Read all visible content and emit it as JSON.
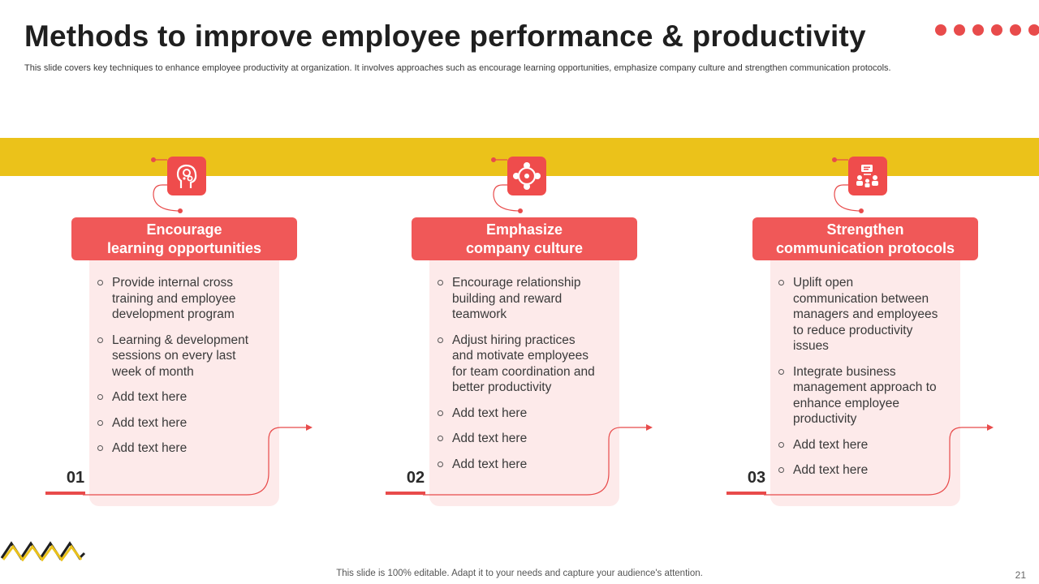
{
  "slide": {
    "title": "Methods to improve employee performance & productivity",
    "subtitle": "This slide covers key techniques to enhance employee productivity at organization. It involves approaches such as encourage learning opportunities, emphasize company culture and strengthen communication protocols.",
    "footer": "This slide is 100% editable. Adapt it to your needs and capture your audience's attention.",
    "page_number": "21"
  },
  "colors": {
    "accent_red": "#ef4c4c",
    "accent_yellow": "#ebc21a",
    "card_fill": "#fdeaea"
  },
  "cards": [
    {
      "icon": "head-gears-icon",
      "title_line1": "Encourage",
      "title_line2": "learning opportunities",
      "items": [
        "Provide internal cross training and employee development program",
        "Learning & development sessions on every last week of month",
        "Add text here",
        "Add text here",
        "Add text here"
      ],
      "number": "01"
    },
    {
      "icon": "team-circle-icon",
      "title_line1": "Emphasize",
      "title_line2": "company culture",
      "items": [
        "Encourage relationship building and reward teamwork",
        "Adjust hiring practices and motivate employees for team coordination and better productivity",
        "Add text here",
        "Add text here",
        "Add text here"
      ],
      "number": "02"
    },
    {
      "icon": "communication-network-icon",
      "title_line1": "Strengthen",
      "title_line2": "communication protocols",
      "items": [
        "Uplift open communication between managers and employees to reduce productivity issues",
        "Integrate business management approach to enhance employee productivity",
        "Add text here",
        "Add text here"
      ],
      "number": "03"
    }
  ]
}
